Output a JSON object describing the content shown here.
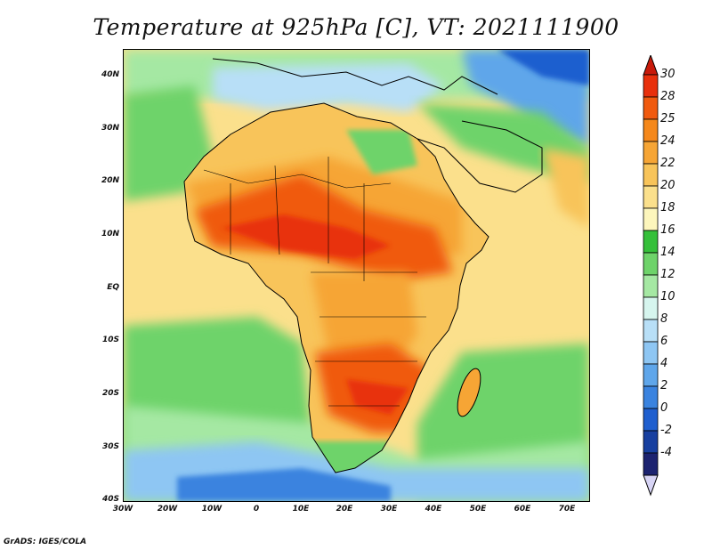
{
  "title": "Temperature at 925hPa [C], VT: 2021111900",
  "credit": "GrADS: IGES/COLA",
  "map": {
    "lat_labels": [
      "40N",
      "30N",
      "20N",
      "10N",
      "EQ",
      "10S",
      "20S",
      "30S",
      "40S"
    ],
    "lon_labels": [
      "30W",
      "20W",
      "10W",
      "0",
      "10E",
      "20E",
      "30E",
      "40E",
      "50E",
      "60E",
      "70E"
    ],
    "lat_values": [
      40,
      30,
      20,
      10,
      0,
      -10,
      -20,
      -30,
      -40
    ],
    "lon_values": [
      -30,
      -20,
      -10,
      0,
      10,
      20,
      30,
      40,
      50,
      60,
      70
    ],
    "extent": {
      "lon_min": -30,
      "lon_max": 75,
      "lat_min": -40,
      "lat_max": 45
    }
  },
  "colorbar": {
    "labels": [
      "30",
      "28",
      "25",
      "24",
      "22",
      "20",
      "18",
      "16",
      "14",
      "12",
      "10",
      "8",
      "6",
      "4",
      "2",
      "0",
      "-2",
      "-4"
    ],
    "colors": [
      "#e8300c",
      "#f05a0f",
      "#f5881b",
      "#f6a535",
      "#f8c45a",
      "#fbe08c",
      "#fdf6bc",
      "#35c03a",
      "#6ed36a",
      "#a5e8a3",
      "#d6f5ee",
      "#b8dff7",
      "#8ec6f3",
      "#5fa6ea",
      "#3a83df",
      "#1f5fcf",
      "#1840a0",
      "#1c2370"
    ],
    "top_arrow_color": "#c81a0a",
    "bottom_arrow_color": "#d7d4f5"
  }
}
